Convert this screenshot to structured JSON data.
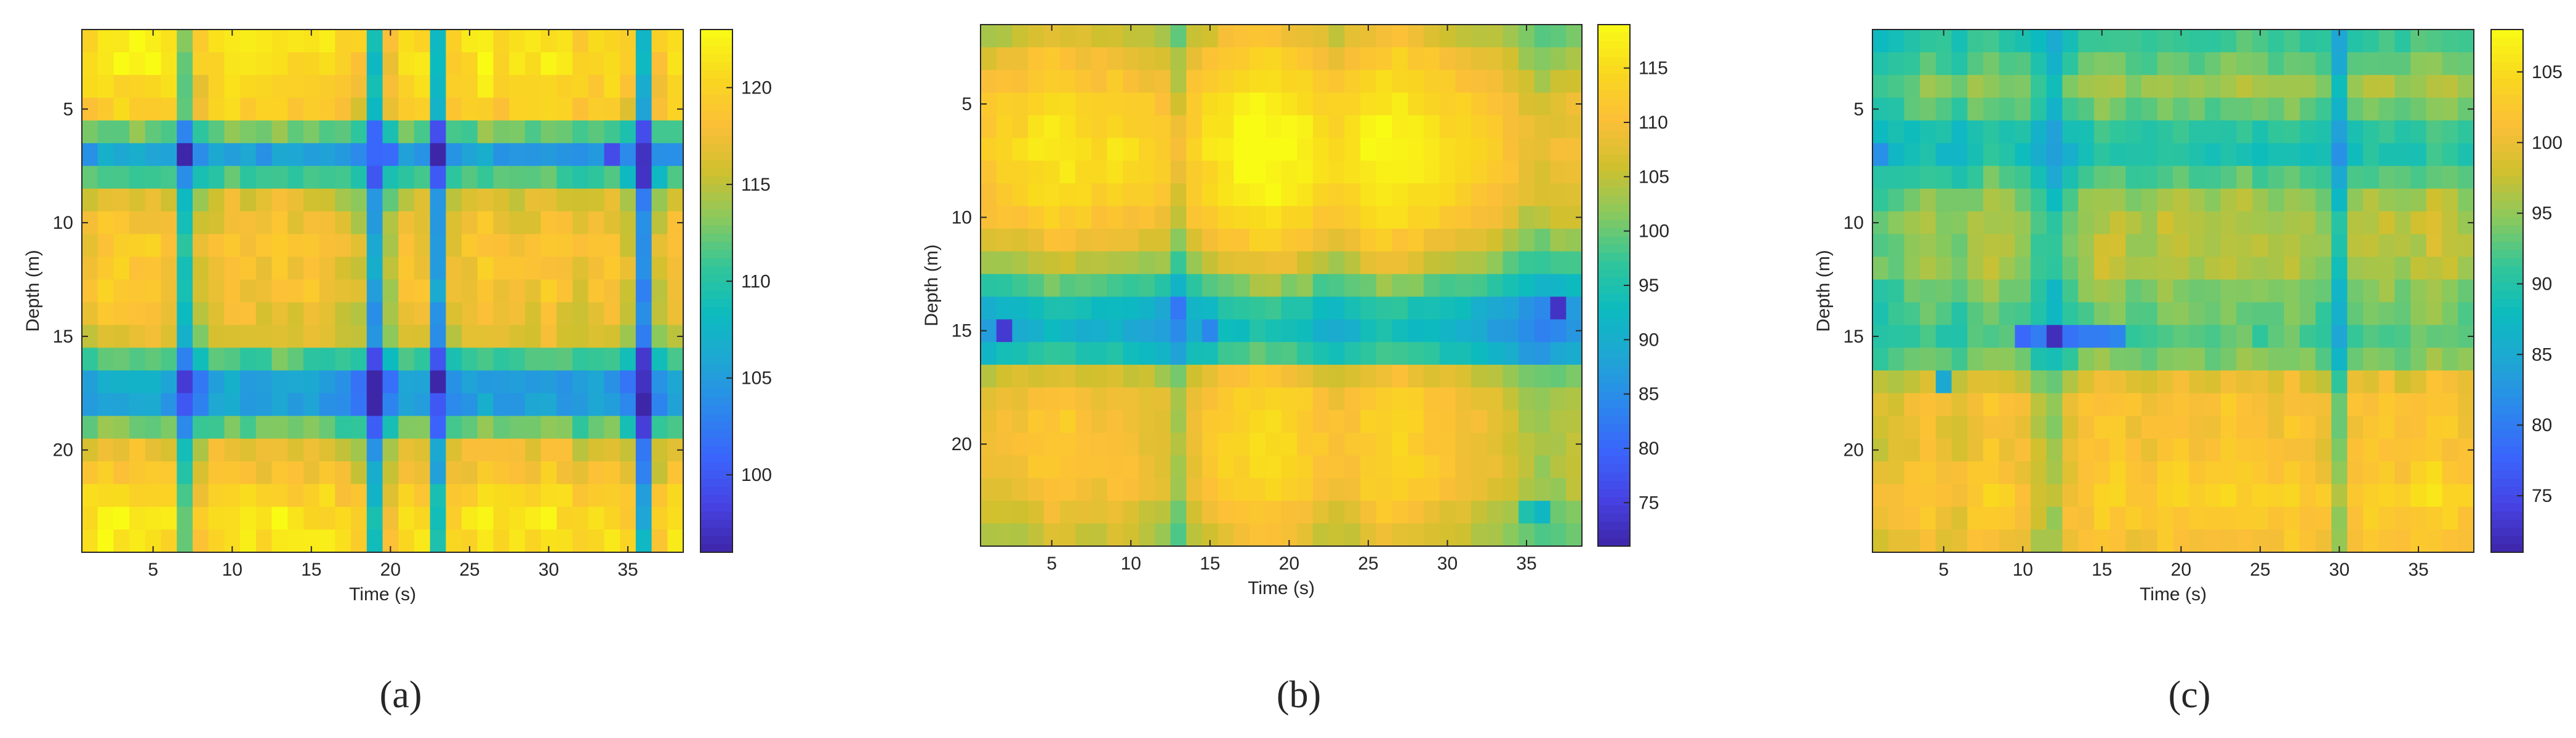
{
  "colormap": [
    "#3e26a8",
    "#4743e4",
    "#3a65fc",
    "#2c88ec",
    "#1fa6d4",
    "#0cbbbf",
    "#32c699",
    "#88c95e",
    "#d0c02f",
    "#fcbf38",
    "#f9d81f",
    "#f9fb15"
  ],
  "chart_data": [
    {
      "type": "heatmap",
      "panel_label": "(a)",
      "xlabel": "Time (s)",
      "ylabel": "Depth (m)",
      "xlim": [
        0.5,
        38.5
      ],
      "ylim": [
        24.5,
        1.5
      ],
      "xticks": [
        5,
        10,
        15,
        20,
        25,
        30,
        35
      ],
      "yticks": [
        5,
        10,
        15,
        20
      ],
      "colorbar": {
        "range": [
          96,
          123
        ],
        "ticks": [
          100,
          105,
          110,
          115,
          120
        ]
      },
      "rows": {
        "depths": [
          2,
          3,
          4,
          5,
          6,
          7,
          8,
          9,
          10,
          11,
          12,
          13,
          14,
          15,
          16,
          17,
          18,
          19,
          20,
          21,
          22,
          23,
          24
        ],
        "profile": [
          121,
          121,
          120,
          119,
          112,
          105,
          111,
          116,
          117,
          118,
          118,
          118,
          117,
          116,
          111,
          105,
          105,
          112,
          117,
          118,
          120,
          121,
          121
        ]
      },
      "columns": {
        "times": [
          1,
          2,
          3,
          4,
          5,
          6,
          7,
          8,
          9,
          10,
          11,
          12,
          13,
          14,
          15,
          16,
          17,
          18,
          19,
          20,
          21,
          22,
          23,
          24,
          25,
          26,
          27,
          28,
          29,
          30,
          31,
          32,
          33,
          34,
          35,
          36,
          37,
          38
        ],
        "profile": [
          0,
          1,
          1,
          1,
          1,
          0,
          -8,
          -2,
          0,
          1,
          0,
          0,
          1,
          0,
          0,
          0,
          -1,
          -2,
          -12,
          -3,
          0,
          0,
          -12,
          -1,
          0,
          1,
          0,
          0,
          0,
          1,
          0,
          -1,
          0,
          0,
          -2,
          -14,
          -2,
          0
        ]
      },
      "anomalies": [
        {
          "t": 19,
          "d": 7,
          "v": 101
        },
        {
          "t": 34,
          "d": 7,
          "v": 99
        },
        {
          "t": 36,
          "d": 7,
          "v": 97
        },
        {
          "t": 7,
          "d": 18,
          "v": 100
        },
        {
          "t": 23,
          "d": 18,
          "v": 100
        },
        {
          "t": 36,
          "d": 17,
          "v": 97
        },
        {
          "t": 36,
          "d": 18,
          "v": 96
        },
        {
          "t": 36,
          "d": 19,
          "v": 98
        }
      ]
    },
    {
      "type": "heatmap",
      "panel_label": "(b)",
      "xlabel": "Time (s)",
      "ylabel": "Depth (m)",
      "xlim": [
        0.5,
        38.5
      ],
      "ylim": [
        24.5,
        1.5
      ],
      "xticks": [
        5,
        10,
        15,
        20,
        25,
        30,
        35
      ],
      "yticks": [
        5,
        10,
        15,
        20
      ],
      "colorbar": {
        "range": [
          71,
          119
        ],
        "ticks": [
          75,
          80,
          85,
          90,
          95,
          100,
          105,
          110,
          115
        ]
      },
      "rows": {
        "depths": [
          2,
          3,
          4,
          5,
          6,
          7,
          8,
          9,
          10,
          11,
          12,
          13,
          14,
          15,
          16,
          17,
          18,
          19,
          20,
          21,
          22,
          23,
          24
        ],
        "profile": [
          106,
          109,
          111,
          113,
          114,
          115,
          114,
          113,
          111,
          108,
          104,
          98,
          92,
          90,
          94,
          106,
          109,
          110,
          110,
          110,
          109,
          107,
          105
        ]
      },
      "columns": {
        "times": [
          1,
          2,
          3,
          4,
          5,
          6,
          7,
          8,
          9,
          10,
          11,
          12,
          13,
          14,
          15,
          16,
          17,
          18,
          19,
          20,
          21,
          22,
          23,
          24,
          25,
          26,
          27,
          28,
          29,
          30,
          31,
          32,
          33,
          34,
          35,
          36,
          37,
          38
        ],
        "profile": [
          -2,
          -1,
          0,
          1,
          2,
          2,
          1,
          0,
          1,
          0,
          -1,
          -2,
          -6,
          -1,
          1,
          3,
          4,
          5,
          5,
          4,
          3,
          1,
          0,
          1,
          3,
          4,
          4,
          3,
          2,
          1,
          0,
          -1,
          -2,
          -4,
          -6,
          -7,
          -6,
          -5
        ]
      },
      "anomalies": [
        {
          "t": 2,
          "d": 15,
          "v": 74
        },
        {
          "t": 13,
          "d": 14,
          "v": 82
        },
        {
          "t": 15,
          "d": 15,
          "v": 84
        },
        {
          "t": 37,
          "d": 14,
          "v": 73
        },
        {
          "t": 35,
          "d": 23,
          "v": 95
        },
        {
          "t": 36,
          "d": 23,
          "v": 92
        }
      ]
    },
    {
      "type": "heatmap",
      "panel_label": "(c)",
      "xlabel": "Time (s)",
      "ylabel": "Depth (m)",
      "xlim": [
        0.5,
        38.5
      ],
      "ylim": [
        24.5,
        1.5
      ],
      "xticks": [
        5,
        10,
        15,
        20,
        25,
        30,
        35
      ],
      "yticks": [
        5,
        10,
        15,
        20
      ],
      "colorbar": {
        "range": [
          71,
          108
        ],
        "ticks": [
          75,
          80,
          85,
          90,
          95,
          100,
          105
        ]
      },
      "rows": {
        "depths": [
          2,
          3,
          4,
          5,
          6,
          7,
          8,
          9,
          10,
          11,
          12,
          13,
          14,
          15,
          16,
          17,
          18,
          19,
          20,
          21,
          22,
          23,
          24
        ],
        "profile": [
          91,
          93,
          95,
          93,
          90,
          89,
          92,
          95,
          96,
          96,
          96,
          94,
          93,
          92,
          94,
          99,
          101,
          101,
          101,
          102,
          103,
          102,
          101
        ]
      },
      "columns": {
        "times": [
          1,
          2,
          3,
          4,
          5,
          6,
          7,
          8,
          9,
          10,
          11,
          12,
          13,
          14,
          15,
          16,
          17,
          18,
          19,
          20,
          21,
          22,
          23,
          24,
          25,
          26,
          27,
          28,
          29,
          30,
          31,
          32,
          33,
          34,
          35,
          36,
          37,
          38
        ],
        "profile": [
          -3,
          -2,
          -1,
          0,
          -1,
          -2,
          0,
          1,
          0,
          -1,
          -4,
          -6,
          -2,
          0,
          1,
          1,
          0,
          0,
          1,
          1,
          0,
          0,
          1,
          1,
          0,
          0,
          1,
          0,
          -1,
          -7,
          0,
          1,
          1,
          0,
          1,
          2,
          1,
          0
        ]
      },
      "anomalies": [
        {
          "t": 1,
          "d": 7,
          "v": 82
        },
        {
          "t": 10,
          "d": 15,
          "v": 78
        },
        {
          "t": 11,
          "d": 15,
          "v": 80
        },
        {
          "t": 12,
          "d": 15,
          "v": 72
        },
        {
          "t": 13,
          "d": 15,
          "v": 79
        },
        {
          "t": 14,
          "d": 15,
          "v": 80
        },
        {
          "t": 15,
          "d": 15,
          "v": 80
        },
        {
          "t": 16,
          "d": 15,
          "v": 81
        },
        {
          "t": 5,
          "d": 17,
          "v": 85
        },
        {
          "t": 30,
          "d": 3,
          "v": 85
        }
      ]
    }
  ]
}
